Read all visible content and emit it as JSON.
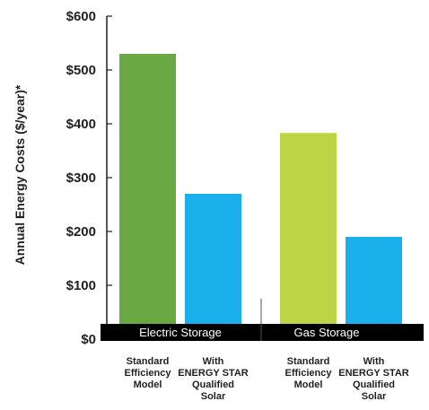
{
  "chart_data": {
    "type": "bar",
    "ylabel": "Annual Energy Costs ($/year)*",
    "ylim": [
      0,
      600
    ],
    "yticks": [
      {
        "value": 0,
        "label": "$0"
      },
      {
        "value": 100,
        "label": "$100"
      },
      {
        "value": 200,
        "label": "$200"
      },
      {
        "value": 300,
        "label": "$300"
      },
      {
        "value": 400,
        "label": "$400"
      },
      {
        "value": 500,
        "label": "$500"
      },
      {
        "value": 600,
        "label": "$600"
      }
    ],
    "groups": [
      {
        "label": "Electric Storage",
        "bars": [
          {
            "category": [
              "Standard",
              "Efficiency",
              "Model"
            ],
            "value": 530,
            "color": "#6aa844"
          },
          {
            "category": [
              "With",
              "ENERGY STAR",
              "Qualified",
              "Solar"
            ],
            "value": 270,
            "color": "#19b0ec"
          }
        ]
      },
      {
        "label": "Gas Storage",
        "bars": [
          {
            "category": [
              "Standard",
              "Efficiency",
              "Model"
            ],
            "value": 383,
            "color": "#bdd444"
          },
          {
            "category": [
              "With",
              "ENERGY STAR",
              "Qualified",
              "Solar"
            ],
            "value": 190,
            "color": "#19b0ec"
          }
        ]
      }
    ],
    "grid": false,
    "legend": "none"
  }
}
